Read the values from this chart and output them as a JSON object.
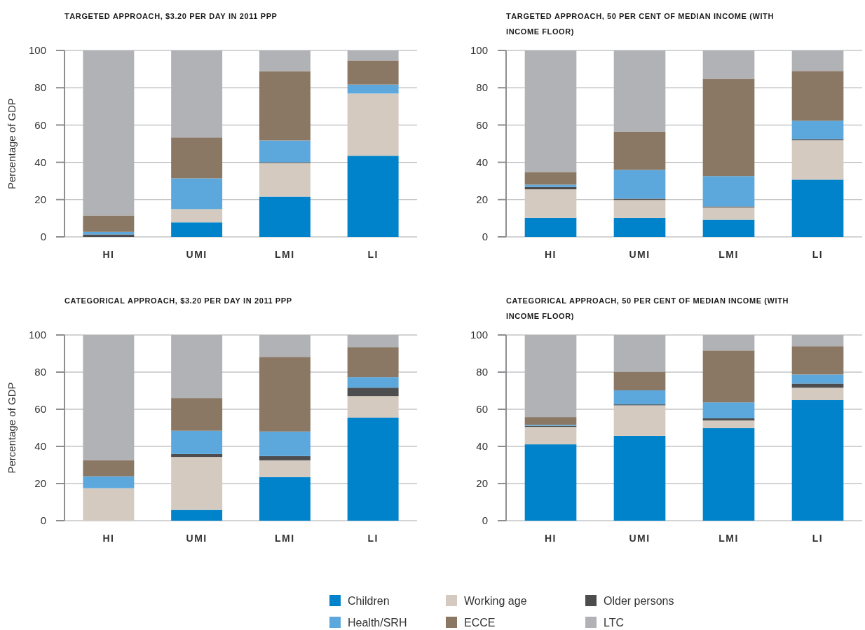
{
  "chart_data": [
    {
      "type": "bar",
      "stacked": true,
      "title": "Targeted approach, $3.20 per day in 2011 PPP",
      "ylabel": "Percentage of GDP",
      "categories": [
        "HI",
        "UMI",
        "LMI",
        "LI"
      ],
      "ylim": [
        0,
        100
      ],
      "yticks": [
        0,
        20,
        40,
        60,
        80,
        100
      ],
      "grid": "y",
      "legend": "bottom",
      "series": [
        {
          "name": "Children",
          "color": "#0083ca",
          "values": [
            0,
            7.8,
            21.6,
            43.5
          ]
        },
        {
          "name": "Working age",
          "color": "#d5cabf",
          "values": [
            0,
            7.1,
            18.0,
            33.4
          ]
        },
        {
          "name": "Older persons",
          "color": "#4d4d4f",
          "values": [
            1.3,
            0,
            0.4,
            0
          ]
        },
        {
          "name": "Health/SRH",
          "color": "#5ca8dc",
          "values": [
            1.4,
            16.5,
            11.7,
            4.8
          ]
        },
        {
          "name": "ECCE",
          "color": "#8a7865",
          "values": [
            8.8,
            21.9,
            37.2,
            12.9
          ]
        },
        {
          "name": "LTC",
          "color": "#b1b2b6",
          "values": [
            88.5,
            46.7,
            11.1,
            5.4
          ]
        }
      ]
    },
    {
      "type": "bar",
      "stacked": true,
      "title": "Targeted approach, 50 per cent of median income (with income floor)",
      "categories": [
        "HI",
        "UMI",
        "LMI",
        "LI"
      ],
      "ylim": [
        0,
        100
      ],
      "yticks": [
        0,
        20,
        40,
        60,
        80,
        100
      ],
      "grid": "y",
      "series": [
        {
          "color": "#0083ca",
          "values": [
            10.2,
            10.2,
            9.2,
            30.7
          ]
        },
        {
          "color": "#d5cabf",
          "values": [
            15.3,
            9.6,
            6.6,
            21.1
          ]
        },
        {
          "color": "#4d4d4f",
          "values": [
            1.3,
            0.7,
            0.5,
            0.6
          ]
        },
        {
          "color": "#5ca8dc",
          "values": [
            1.2,
            15.4,
            16.3,
            9.9
          ]
        },
        {
          "color": "#8a7865",
          "values": [
            6.8,
            20.6,
            52.2,
            26.7
          ]
        },
        {
          "color": "#b1b2b6",
          "values": [
            65.2,
            43.5,
            15.2,
            11.0
          ]
        }
      ]
    },
    {
      "type": "bar",
      "stacked": true,
      "title": "Categorical approach, $3.20 per day in 2011 PPP",
      "ylabel": "Percentage of GDP",
      "categories": [
        "HI",
        "UMI",
        "LMI",
        "LI"
      ],
      "ylim": [
        0,
        100
      ],
      "yticks": [
        0,
        20,
        40,
        60,
        80,
        100
      ],
      "grid": "y",
      "series": [
        {
          "color": "#0083ca",
          "values": [
            0,
            5.8,
            23.5,
            55.5
          ]
        },
        {
          "color": "#d5cabf",
          "values": [
            17.5,
            28.5,
            9.0,
            11.6
          ]
        },
        {
          "color": "#4d4d4f",
          "values": [
            0,
            1.6,
            2.3,
            4.5
          ]
        },
        {
          "color": "#5ca8dc",
          "values": [
            6.4,
            12.5,
            13.2,
            5.7
          ]
        },
        {
          "color": "#8a7865",
          "values": [
            8.6,
            17.6,
            40.2,
            16.2
          ]
        },
        {
          "color": "#b1b2b6",
          "values": [
            67.5,
            34.0,
            11.8,
            6.5
          ]
        }
      ]
    },
    {
      "type": "bar",
      "stacked": true,
      "title": "Categorical approach, 50 per cent of median income (with income floor)",
      "categories": [
        "HI",
        "UMI",
        "LMI",
        "LI"
      ],
      "ylim": [
        0,
        100
      ],
      "yticks": [
        0,
        20,
        40,
        60,
        80,
        100
      ],
      "grid": "y",
      "series": [
        {
          "color": "#0083ca",
          "values": [
            41.1,
            45.7,
            49.8,
            64.9
          ]
        },
        {
          "color": "#d5cabf",
          "values": [
            9.4,
            16.4,
            4.2,
            6.7
          ]
        },
        {
          "color": "#4d4d4f",
          "values": [
            0.5,
            0.5,
            1.1,
            2.2
          ]
        },
        {
          "color": "#5ca8dc",
          "values": [
            0.6,
            7.6,
            8.6,
            4.9
          ]
        },
        {
          "color": "#8a7865",
          "values": [
            4.2,
            10.0,
            27.9,
            15.2
          ]
        },
        {
          "color": "#b1b2b6",
          "values": [
            44.2,
            19.8,
            8.4,
            6.1
          ]
        }
      ]
    }
  ]
}
